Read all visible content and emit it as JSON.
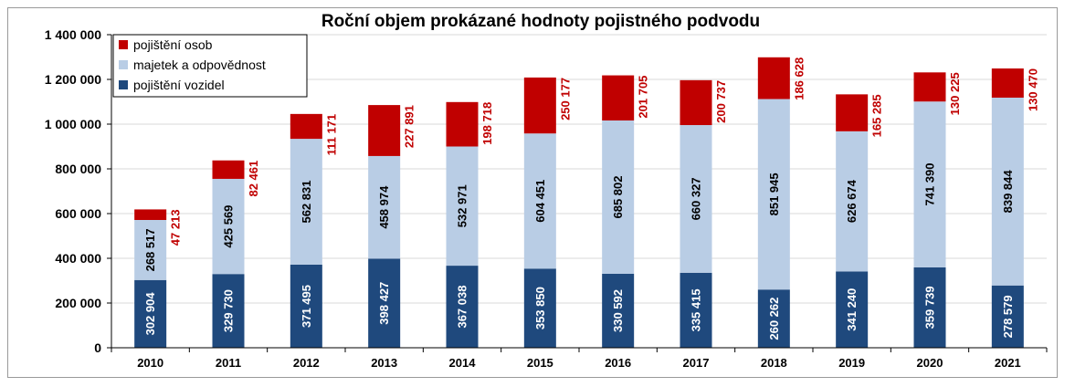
{
  "chart_data": {
    "type": "bar",
    "stacked": true,
    "title": "Roční objem prokázané hodnoty pojistného podvodu",
    "categories": [
      "2010",
      "2011",
      "2012",
      "2013",
      "2014",
      "2015",
      "2016",
      "2017",
      "2018",
      "2019",
      "2020",
      "2021"
    ],
    "ylim": [
      0,
      1400000
    ],
    "yticks": [
      0,
      200000,
      400000,
      600000,
      800000,
      1000000,
      1200000,
      1400000
    ],
    "ytick_labels": [
      "0",
      "200 000",
      "400 000",
      "600 000",
      "800 000",
      "1 000 000",
      "1 200 000",
      "1 400 000"
    ],
    "legend_position": "top-left",
    "series": [
      {
        "name": "pojištění vozidel",
        "color": "#1f497d",
        "values": [
          302904,
          329730,
          371495,
          398427,
          367038,
          353850,
          330592,
          335415,
          260262,
          341240,
          359739,
          278579
        ],
        "labels": [
          "302 904",
          "329 730",
          "371 495",
          "398 427",
          "367 038",
          "353 850",
          "330 592",
          "335 415",
          "260 262",
          "341 240",
          "359 739",
          "278 579"
        ]
      },
      {
        "name": "majetek a odpovědnost",
        "color": "#b9cde5",
        "values": [
          268517,
          425569,
          562831,
          458974,
          532971,
          604451,
          685802,
          660327,
          851945,
          626674,
          741390,
          839844
        ],
        "labels": [
          "268 517",
          "425 569",
          "562 831",
          "458 974",
          "532 971",
          "604 451",
          "685 802",
          "660 327",
          "851 945",
          "626 674",
          "741 390",
          "839 844"
        ]
      },
      {
        "name": "pojištění osob",
        "color": "#c00000",
        "values": [
          47213,
          82461,
          111171,
          227891,
          198718,
          250177,
          201705,
          200737,
          186628,
          165285,
          130225,
          130470
        ],
        "labels": [
          "47 213",
          "82 461",
          "111 171",
          "227 891",
          "198 718",
          "250 177",
          "201 705",
          "200 737",
          "186 628",
          "165 285",
          "130 225",
          "130 470"
        ]
      }
    ],
    "legend_order": [
      "pojištění osob",
      "majetek a odpovědnost",
      "pojištění vozidel"
    ]
  }
}
